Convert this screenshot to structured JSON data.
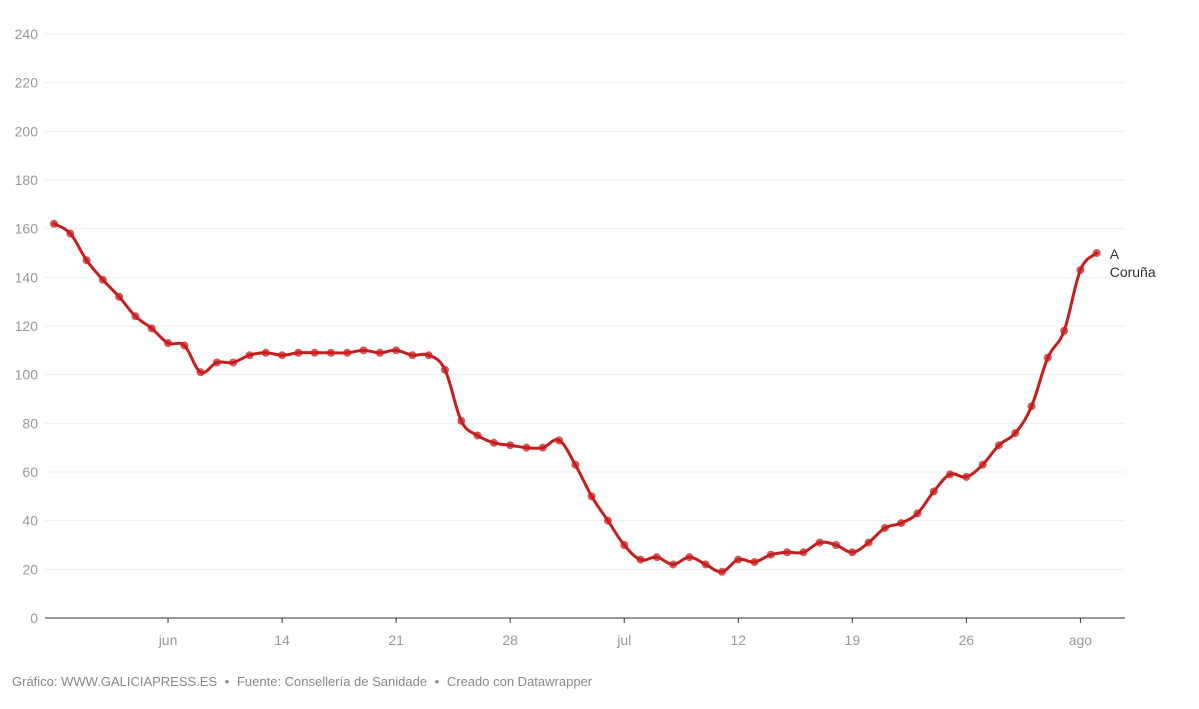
{
  "chart_data": {
    "type": "line",
    "y_ticks": [
      0,
      20,
      40,
      60,
      80,
      100,
      120,
      140,
      160,
      180,
      200,
      220,
      240
    ],
    "ylim": [
      0,
      240
    ],
    "x_tick_labels": [
      {
        "day": 7,
        "label": "jun"
      },
      {
        "day": 14,
        "label": "14"
      },
      {
        "day": 21,
        "label": "21"
      },
      {
        "day": 28,
        "label": "28"
      },
      {
        "day": 35,
        "label": "jul"
      },
      {
        "day": 42,
        "label": "12"
      },
      {
        "day": 49,
        "label": "19"
      },
      {
        "day": 56,
        "label": "26"
      },
      {
        "day": 63,
        "label": "ago"
      }
    ],
    "xlim": [
      0,
      65
    ],
    "series": [
      {
        "name": "A Coruña",
        "color": "#c71e1d",
        "x": [
          0,
          1,
          2,
          3,
          4,
          5,
          6,
          7,
          8,
          9,
          10,
          11,
          12,
          13,
          14,
          15,
          16,
          17,
          18,
          19,
          20,
          21,
          22,
          23,
          24,
          25,
          26,
          27,
          28,
          29,
          30,
          31,
          32,
          33,
          34,
          35,
          36,
          37,
          38,
          39,
          40,
          41,
          42,
          43,
          44,
          45,
          46,
          47,
          48,
          49,
          50,
          51,
          52,
          53,
          54,
          55,
          56,
          57,
          58,
          59,
          60,
          61,
          62,
          63,
          64
        ],
        "values": [
          162,
          158,
          147,
          139,
          132,
          124,
          119,
          113,
          112,
          101,
          105,
          105,
          108,
          109,
          108,
          109,
          109,
          109,
          109,
          110,
          109,
          110,
          108,
          108,
          102,
          81,
          75,
          72,
          71,
          70,
          70,
          73,
          63,
          50,
          40,
          30,
          24,
          25,
          22,
          25,
          22,
          19,
          24,
          23,
          26,
          27,
          27,
          31,
          30,
          27,
          31,
          37,
          39,
          43,
          52,
          59,
          58,
          63,
          71,
          76,
          87,
          107,
          118,
          143,
          150
        ]
      }
    ],
    "label_lines": [
      "A",
      "Coruña"
    ]
  },
  "footer": {
    "credit": "Gráfico: WWW.GALICIAPRESS.ES",
    "separator": "•",
    "source": "Fuente: Consellería de Sanidade",
    "tool": "Creado con Datawrapper"
  }
}
